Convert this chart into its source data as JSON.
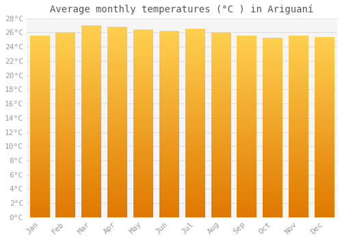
{
  "title": "Average monthly temperatures (°C ) in Ariguaní",
  "months": [
    "Jan",
    "Feb",
    "Mar",
    "Apr",
    "May",
    "Jun",
    "Jul",
    "Aug",
    "Sep",
    "Oct",
    "Nov",
    "Dec"
  ],
  "values": [
    25.5,
    26.0,
    27.0,
    26.8,
    26.4,
    26.2,
    26.5,
    26.0,
    25.5,
    25.2,
    25.5,
    25.3
  ],
  "bar_color_bright": "#FFD050",
  "bar_color_mid": "#FFA500",
  "bar_color_dark": "#E07800",
  "background_color": "#FFFFFF",
  "plot_bg_color": "#F5F5F5",
  "grid_color": "#DDDDDD",
  "ylim": [
    0,
    28
  ],
  "ytick_step": 2,
  "title_fontsize": 10,
  "tick_fontsize": 8,
  "bar_width": 0.75,
  "title_color": "#555555",
  "tick_color": "#999999"
}
